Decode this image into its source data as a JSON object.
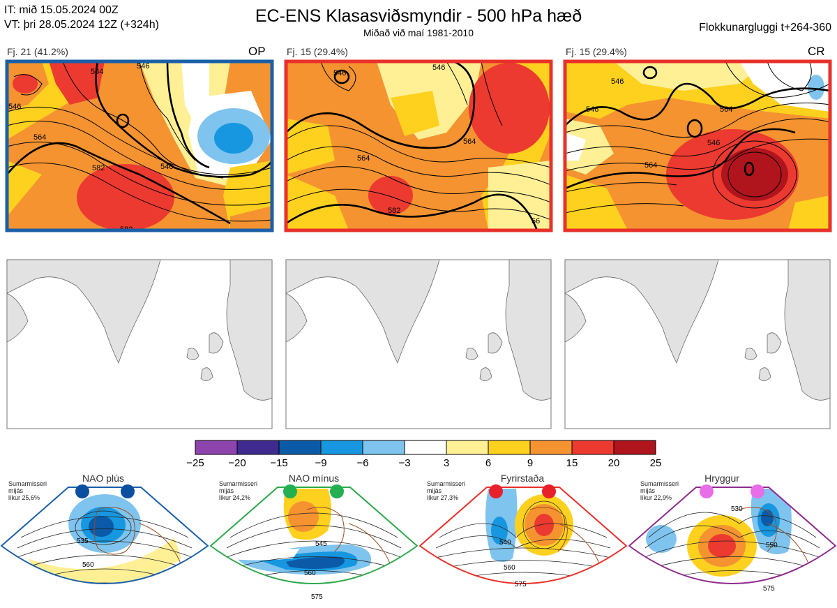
{
  "header": {
    "line1": "IT: mið 15.05.2024 00Z",
    "line2": "VT: þri 28.05.2024 12Z  (+324h)",
    "title": "EC-ENS Klasasviðsmyndir - 500 hPa hæð",
    "subtitle": "Miðað við maí 1981-2010",
    "right": "Flokkunargluggi t+264-360"
  },
  "panels": [
    {
      "label": "Fj. 21 (41.2%)",
      "tag": "OP",
      "border_color": "#1a5fa8",
      "contour_labels": [
        "546",
        "564",
        "546",
        "564",
        "582",
        "546",
        "582"
      ]
    },
    {
      "label": "Fj. 15 (29.4%)",
      "tag": "",
      "border_color": "#e8302a",
      "contour_labels": [
        "546",
        "546",
        "564",
        "582",
        "564",
        "56"
      ]
    },
    {
      "label": "Fj. 15 (29.4%)",
      "tag": "CR",
      "border_color": "#e8302a",
      "contour_labels": [
        "546",
        "546",
        "564",
        "564",
        "546"
      ]
    }
  ],
  "colorbar": {
    "ticks": [
      "−25",
      "−20",
      "−15",
      "−9",
      "−6",
      "−3",
      "3",
      "6",
      "9",
      "15",
      "20",
      "25"
    ],
    "colors": [
      "#8e44ad",
      "#3f2a8f",
      "#0b5aa8",
      "#1797df",
      "#7fc4ee",
      "#ffffff",
      "#fff096",
      "#ffd11f",
      "#f59331",
      "#ec3a30",
      "#b0141c"
    ]
  },
  "regimes": [
    {
      "name": "NAO plús",
      "season": "Sumarmisseri",
      "method": "mijás",
      "prob": "líkur 25,6%",
      "color": "#1a5fa8",
      "dot_color": "#0b4fa0",
      "contour_labels": [
        "535",
        "560"
      ]
    },
    {
      "name": "NAO mínus",
      "season": "Sumarmisseri",
      "method": "mijás",
      "prob": "líkur 24,2%",
      "color": "#2ea84a",
      "dot_color": "#22b050",
      "contour_labels": [
        "545",
        "560",
        "575"
      ]
    },
    {
      "name": "Fyrirstaða",
      "season": "Sumarmisseri",
      "method": "mijás",
      "prob": "líkur 27,3%",
      "color": "#e8302a",
      "dot_color": "#e8202a",
      "contour_labels": [
        "540",
        "560",
        "575"
      ]
    },
    {
      "name": "Hryggur",
      "season": "Sumarmisseri",
      "method": "mijás",
      "prob": "líkur 22,9%",
      "color": "#8e2a8e",
      "dot_color": "#e86ee8",
      "contour_labels": [
        "530",
        "550",
        "575"
      ]
    }
  ]
}
